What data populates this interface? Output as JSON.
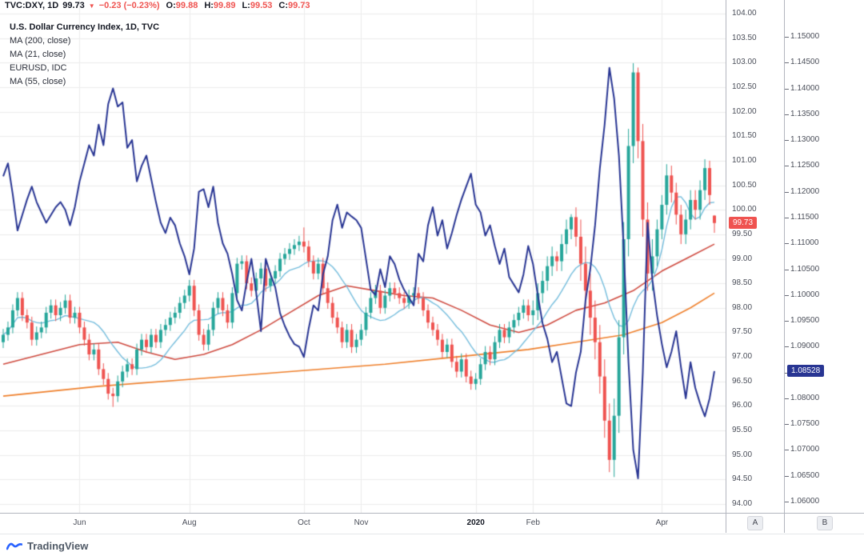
{
  "header": {
    "symbol": "TVC:DXY, 1D",
    "last": "99.73",
    "direction": "▼",
    "change": "−0.23 (−0.23%)",
    "o_label": "O:",
    "o": "99.88",
    "h_label": "H:",
    "h": "99.89",
    "l_label": "L:",
    "l": "99.53",
    "c_label": "C:",
    "c": "99.73"
  },
  "legend": {
    "title": "U.S. Dollar Currency Index, 1D, TVC",
    "items": [
      "MA (200, close)",
      "MA (21, close)",
      "EURUSD, IDC",
      "MA (55, close)"
    ]
  },
  "price_axis_dxy": {
    "min": 94.0,
    "max": 104.0,
    "step": 0.5,
    "decimals": 2,
    "badge": "99.73",
    "badge_value": 99.73,
    "badge_color": "#ef5350"
  },
  "price_axis_eur": {
    "min": 1.06,
    "max": 1.15,
    "step": 0.005,
    "decimals": 5,
    "badge": "1.08528",
    "badge_value": 1.08528,
    "badge_color": "#283593"
  },
  "time_axis": {
    "ticks": [
      {
        "label": "Jun",
        "i": 16,
        "bold": false
      },
      {
        "label": "Aug",
        "i": 39,
        "bold": false
      },
      {
        "label": "Oct",
        "i": 63,
        "bold": false
      },
      {
        "label": "Nov",
        "i": 75,
        "bold": false
      },
      {
        "label": "2020",
        "i": 99,
        "bold": true
      },
      {
        "label": "Feb",
        "i": 111,
        "bold": false
      },
      {
        "label": "Apr",
        "i": 138,
        "bold": false
      }
    ]
  },
  "axis_buttons": {
    "a": "A",
    "b": "B"
  },
  "footer": {
    "brand": "TradingView"
  },
  "chart_data": {
    "type": "candlestick+line",
    "title": "U.S. Dollar Currency Index, 1D, TVC with EURUSD overlay",
    "x_range": "late Apr 2019 – late Apr 2020, ~2 trading days per bar (values read from chart)",
    "dxy_axis": {
      "min": 94.0,
      "max": 104.0,
      "tick": 0.5
    },
    "eur_axis": {
      "min": 1.06,
      "max": 1.15,
      "tick": 0.005
    },
    "grid": true,
    "legend_position": "top-left",
    "colors": {
      "up": "#26a69a",
      "down": "#ef5350",
      "eurusd": "#283593",
      "ma21": "#74bddd",
      "ma55": "#cf4a3f",
      "ma200": "#ef7f2a"
    },
    "candles_ohlc": [
      [
        97.3,
        97.57,
        97.18,
        97.45
      ],
      [
        97.45,
        97.72,
        97.33,
        97.6
      ],
      [
        97.6,
        98.07,
        97.48,
        97.95
      ],
      [
        97.95,
        98.32,
        97.83,
        98.2
      ],
      [
        98.2,
        98.32,
        97.73,
        97.85
      ],
      [
        97.85,
        97.97,
        97.58,
        97.7
      ],
      [
        97.7,
        97.82,
        97.23,
        97.35
      ],
      [
        97.35,
        97.62,
        97.23,
        97.5
      ],
      [
        97.5,
        97.72,
        97.38,
        97.6
      ],
      [
        97.6,
        98.02,
        97.48,
        97.9
      ],
      [
        97.9,
        98.17,
        97.78,
        98.05
      ],
      [
        98.05,
        98.17,
        97.73,
        97.85
      ],
      [
        97.85,
        98.12,
        97.73,
        98.0
      ],
      [
        98.0,
        98.27,
        97.88,
        98.15
      ],
      [
        98.15,
        98.27,
        97.68,
        97.8
      ],
      [
        97.8,
        98.02,
        97.68,
        97.9
      ],
      [
        97.9,
        98.02,
        97.48,
        97.6
      ],
      [
        97.6,
        97.72,
        97.23,
        97.35
      ],
      [
        97.35,
        97.47,
        96.93,
        97.05
      ],
      [
        97.05,
        97.27,
        96.93,
        97.15
      ],
      [
        97.15,
        97.27,
        96.63,
        96.75
      ],
      [
        96.75,
        96.87,
        96.43,
        96.55
      ],
      [
        96.55,
        96.67,
        96.13,
        96.25
      ],
      [
        96.25,
        96.37,
        95.98,
        96.2
      ],
      [
        96.2,
        96.62,
        96.08,
        96.5
      ],
      [
        96.5,
        96.82,
        96.38,
        96.7
      ],
      [
        96.7,
        96.97,
        96.58,
        96.85
      ],
      [
        96.85,
        96.97,
        96.63,
        96.75
      ],
      [
        96.75,
        97.27,
        96.63,
        97.15
      ],
      [
        97.15,
        97.47,
        97.03,
        97.35
      ],
      [
        97.35,
        97.47,
        97.08,
        97.2
      ],
      [
        97.2,
        97.57,
        97.08,
        97.45
      ],
      [
        97.45,
        97.57,
        97.18,
        97.3
      ],
      [
        97.3,
        97.67,
        97.18,
        97.55
      ],
      [
        97.55,
        97.77,
        97.43,
        97.65
      ],
      [
        97.65,
        97.92,
        97.53,
        97.8
      ],
      [
        97.8,
        98.02,
        97.68,
        97.9
      ],
      [
        97.9,
        98.22,
        97.78,
        98.1
      ],
      [
        98.1,
        98.37,
        97.98,
        98.25
      ],
      [
        98.25,
        98.57,
        98.13,
        98.45
      ],
      [
        98.45,
        98.57,
        97.83,
        97.95
      ],
      [
        97.95,
        98.07,
        97.33,
        97.45
      ],
      [
        97.45,
        97.57,
        97.13,
        97.25
      ],
      [
        97.25,
        97.67,
        97.13,
        97.55
      ],
      [
        97.55,
        98.12,
        97.43,
        98.0
      ],
      [
        98.0,
        98.32,
        97.88,
        98.2
      ],
      [
        98.2,
        98.32,
        97.83,
        97.95
      ],
      [
        97.95,
        98.07,
        97.58,
        97.7
      ],
      [
        97.7,
        98.42,
        97.58,
        98.3
      ],
      [
        98.3,
        99.02,
        98.18,
        98.9
      ],
      [
        98.9,
        99.07,
        98.78,
        98.95
      ],
      [
        98.95,
        99.07,
        98.38,
        98.5
      ],
      [
        98.5,
        98.62,
        98.23,
        98.35
      ],
      [
        98.35,
        98.72,
        98.23,
        98.6
      ],
      [
        98.6,
        98.92,
        98.48,
        98.8
      ],
      [
        98.8,
        98.92,
        98.33,
        98.45
      ],
      [
        98.45,
        98.72,
        98.33,
        98.6
      ],
      [
        98.6,
        98.87,
        98.48,
        98.75
      ],
      [
        98.75,
        99.12,
        98.63,
        99.0
      ],
      [
        99.0,
        99.22,
        98.88,
        99.1
      ],
      [
        99.1,
        99.32,
        98.98,
        99.2
      ],
      [
        99.2,
        99.4,
        99.08,
        99.28
      ],
      [
        99.28,
        99.47,
        99.16,
        99.35
      ],
      [
        99.35,
        99.64,
        99.13,
        99.25
      ],
      [
        99.25,
        99.37,
        98.83,
        98.95
      ],
      [
        98.95,
        99.07,
        98.58,
        98.7
      ],
      [
        98.7,
        99.02,
        98.58,
        98.9
      ],
      [
        98.9,
        99.02,
        98.28,
        98.4
      ],
      [
        98.4,
        98.52,
        97.98,
        98.1
      ],
      [
        98.1,
        98.22,
        97.68,
        97.8
      ],
      [
        97.8,
        97.92,
        97.48,
        97.6
      ],
      [
        97.6,
        97.72,
        97.18,
        97.3
      ],
      [
        97.3,
        97.67,
        97.18,
        97.55
      ],
      [
        97.55,
        97.67,
        97.08,
        97.2
      ],
      [
        97.2,
        97.47,
        97.08,
        97.35
      ],
      [
        97.35,
        97.67,
        97.23,
        97.55
      ],
      [
        97.55,
        98.02,
        97.43,
        97.9
      ],
      [
        97.9,
        98.32,
        97.78,
        98.2
      ],
      [
        98.2,
        98.47,
        98.08,
        98.35
      ],
      [
        98.35,
        98.47,
        97.88,
        98.0
      ],
      [
        98.0,
        98.37,
        97.88,
        98.25
      ],
      [
        98.25,
        98.52,
        98.13,
        98.4
      ],
      [
        98.4,
        98.52,
        98.18,
        98.3
      ],
      [
        98.3,
        98.42,
        98.08,
        98.2
      ],
      [
        98.2,
        98.32,
        97.98,
        98.1
      ],
      [
        98.1,
        98.37,
        97.98,
        98.25
      ],
      [
        98.25,
        98.42,
        98.13,
        98.3
      ],
      [
        98.3,
        98.42,
        98.08,
        98.2
      ],
      [
        98.2,
        98.32,
        97.83,
        97.95
      ],
      [
        97.95,
        98.07,
        97.58,
        97.7
      ],
      [
        97.7,
        97.82,
        97.43,
        97.55
      ],
      [
        97.55,
        97.67,
        97.23,
        97.35
      ],
      [
        97.35,
        97.47,
        96.98,
        97.1
      ],
      [
        97.1,
        97.37,
        96.98,
        97.25
      ],
      [
        97.25,
        97.37,
        96.78,
        96.9
      ],
      [
        96.9,
        97.02,
        96.58,
        96.7
      ],
      [
        96.7,
        97.07,
        96.58,
        96.95
      ],
      [
        96.95,
        97.07,
        96.48,
        96.6
      ],
      [
        96.6,
        96.72,
        96.33,
        96.45
      ],
      [
        96.45,
        96.67,
        96.33,
        96.55
      ],
      [
        96.55,
        96.97,
        96.43,
        96.85
      ],
      [
        96.85,
        97.22,
        96.73,
        97.1
      ],
      [
        97.1,
        97.22,
        96.83,
        96.95
      ],
      [
        96.95,
        97.42,
        96.83,
        97.3
      ],
      [
        97.3,
        97.67,
        97.18,
        97.55
      ],
      [
        97.55,
        97.67,
        97.28,
        97.4
      ],
      [
        97.4,
        97.72,
        97.28,
        97.6
      ],
      [
        97.6,
        97.87,
        97.48,
        97.75
      ],
      [
        97.75,
        98.02,
        97.63,
        97.9
      ],
      [
        97.9,
        98.17,
        97.78,
        98.05
      ],
      [
        98.05,
        98.17,
        97.73,
        97.85
      ],
      [
        97.85,
        98.15,
        97.65,
        97.95
      ],
      [
        97.95,
        98.5,
        97.75,
        98.3
      ],
      [
        98.3,
        98.75,
        98.1,
        98.55
      ],
      [
        98.55,
        99.05,
        98.35,
        98.85
      ],
      [
        98.85,
        99.25,
        98.65,
        99.05
      ],
      [
        99.05,
        99.15,
        98.75,
        98.95
      ],
      [
        98.95,
        99.5,
        98.75,
        99.3
      ],
      [
        99.3,
        99.8,
        99.1,
        99.6
      ],
      [
        99.6,
        99.91,
        99.4,
        99.85
      ],
      [
        99.85,
        100.05,
        99.25,
        99.45
      ],
      [
        99.45,
        99.8,
        98.55,
        98.9
      ],
      [
        98.9,
        99.25,
        98.0,
        98.35
      ],
      [
        98.35,
        98.7,
        97.45,
        97.8
      ],
      [
        97.8,
        98.15,
        96.95,
        97.3
      ],
      [
        97.3,
        97.65,
        96.25,
        96.6
      ],
      [
        96.6,
        96.95,
        95.35,
        95.7
      ],
      [
        95.7,
        96.05,
        94.65,
        94.9
      ],
      [
        94.9,
        96.15,
        94.55,
        95.8
      ],
      [
        95.8,
        97.75,
        95.45,
        97.4
      ],
      [
        97.4,
        99.75,
        97.05,
        99.4
      ],
      [
        99.4,
        101.65,
        99.05,
        101.3
      ],
      [
        101.3,
        102.99,
        100.95,
        102.8
      ],
      [
        102.8,
        102.9,
        101.05,
        101.4
      ],
      [
        101.4,
        101.75,
        99.45,
        99.8
      ],
      [
        99.8,
        100.15,
        98.35,
        98.7
      ],
      [
        98.7,
        99.4,
        98.35,
        99.05
      ],
      [
        99.05,
        99.8,
        98.85,
        99.6
      ],
      [
        99.6,
        100.3,
        99.4,
        100.1
      ],
      [
        100.1,
        100.93,
        99.9,
        100.7
      ],
      [
        100.7,
        100.9,
        100.15,
        100.35
      ],
      [
        100.35,
        100.55,
        99.7,
        99.9
      ],
      [
        99.9,
        100.1,
        99.3,
        99.5
      ],
      [
        99.5,
        100.0,
        99.3,
        99.8
      ],
      [
        99.8,
        100.4,
        99.6,
        100.2
      ],
      [
        100.2,
        100.4,
        99.8,
        100.0
      ],
      [
        100.0,
        100.6,
        99.8,
        100.4
      ],
      [
        100.4,
        101.03,
        100.2,
        100.85
      ],
      [
        100.85,
        101.0,
        100.1,
        100.3
      ],
      [
        99.88,
        99.89,
        99.53,
        99.73
      ]
    ],
    "eurusd_line": [
      1.123,
      1.1255,
      1.1195,
      1.1125,
      1.1155,
      1.1185,
      1.121,
      1.118,
      1.116,
      1.114,
      1.1155,
      1.117,
      1.118,
      1.1165,
      1.1135,
      1.117,
      1.122,
      1.1255,
      1.129,
      1.127,
      1.133,
      1.129,
      1.137,
      1.14,
      1.1365,
      1.1373,
      1.1285,
      1.13,
      1.122,
      1.125,
      1.127,
      1.1225,
      1.118,
      1.114,
      1.112,
      1.115,
      1.1135,
      1.11,
      1.1075,
      1.104,
      1.109,
      1.12,
      1.1205,
      1.117,
      1.121,
      1.114,
      1.11,
      1.108,
      1.104,
      1.099,
      1.097,
      1.1025,
      1.107,
      1.1005,
      1.093,
      1.107,
      1.104,
      1.1015,
      1.0965,
      1.094,
      1.092,
      1.0905,
      1.09,
      1.088,
      1.0935,
      1.098,
      1.097,
      1.104,
      1.1075,
      1.1145,
      1.1175,
      1.113,
      1.116,
      1.1152,
      1.1145,
      1.113,
      1.107,
      1.101,
      1.1,
      1.105,
      1.1015,
      1.1075,
      1.106,
      1.103,
      1.101,
      1.0995,
      1.098,
      1.108,
      1.1065,
      1.1135,
      1.117,
      1.1115,
      1.1145,
      1.109,
      1.112,
      1.1155,
      1.1185,
      1.121,
      1.1235,
      1.1175,
      1.116,
      1.1115,
      1.1135,
      1.1095,
      1.106,
      1.109,
      1.1035,
      1.102,
      1.1005,
      1.104,
      1.1095,
      1.106,
      1.1,
      1.0945,
      1.0915,
      1.087,
      1.089,
      1.084,
      1.079,
      1.0785,
      1.085,
      1.089,
      1.099,
      1.105,
      1.1135,
      1.1245,
      1.133,
      1.144,
      1.138,
      1.127,
      1.109,
      1.087,
      1.07,
      1.0645,
      1.085,
      1.114,
      1.103,
      1.096,
      1.0905,
      1.086,
      1.089,
      1.093,
      1.086,
      1.08,
      1.087,
      1.082,
      1.079,
      1.0765,
      1.08,
      1.08528
    ],
    "ma21": {
      "window_bars": 12,
      "source": "computed from candle closes"
    },
    "ma55_points": [
      [
        0,
        96.85
      ],
      [
        8,
        97.05
      ],
      [
        16,
        97.25
      ],
      [
        24,
        97.3
      ],
      [
        30,
        97.1
      ],
      [
        36,
        96.95
      ],
      [
        42,
        97.05
      ],
      [
        48,
        97.25
      ],
      [
        54,
        97.55
      ],
      [
        60,
        97.9
      ],
      [
        66,
        98.25
      ],
      [
        72,
        98.45
      ],
      [
        78,
        98.35
      ],
      [
        84,
        98.25
      ],
      [
        90,
        98.2
      ],
      [
        96,
        97.95
      ],
      [
        102,
        97.65
      ],
      [
        108,
        97.5
      ],
      [
        114,
        97.65
      ],
      [
        120,
        97.95
      ],
      [
        126,
        98.1
      ],
      [
        132,
        98.35
      ],
      [
        138,
        98.75
      ],
      [
        144,
        99.05
      ],
      [
        149,
        99.3
      ]
    ],
    "ma200_points": [
      [
        0,
        96.2
      ],
      [
        20,
        96.4
      ],
      [
        40,
        96.55
      ],
      [
        60,
        96.7
      ],
      [
        80,
        96.85
      ],
      [
        95,
        97.0
      ],
      [
        110,
        97.15
      ],
      [
        120,
        97.3
      ],
      [
        130,
        97.45
      ],
      [
        138,
        97.7
      ],
      [
        144,
        98.0
      ],
      [
        149,
        98.3
      ]
    ]
  }
}
